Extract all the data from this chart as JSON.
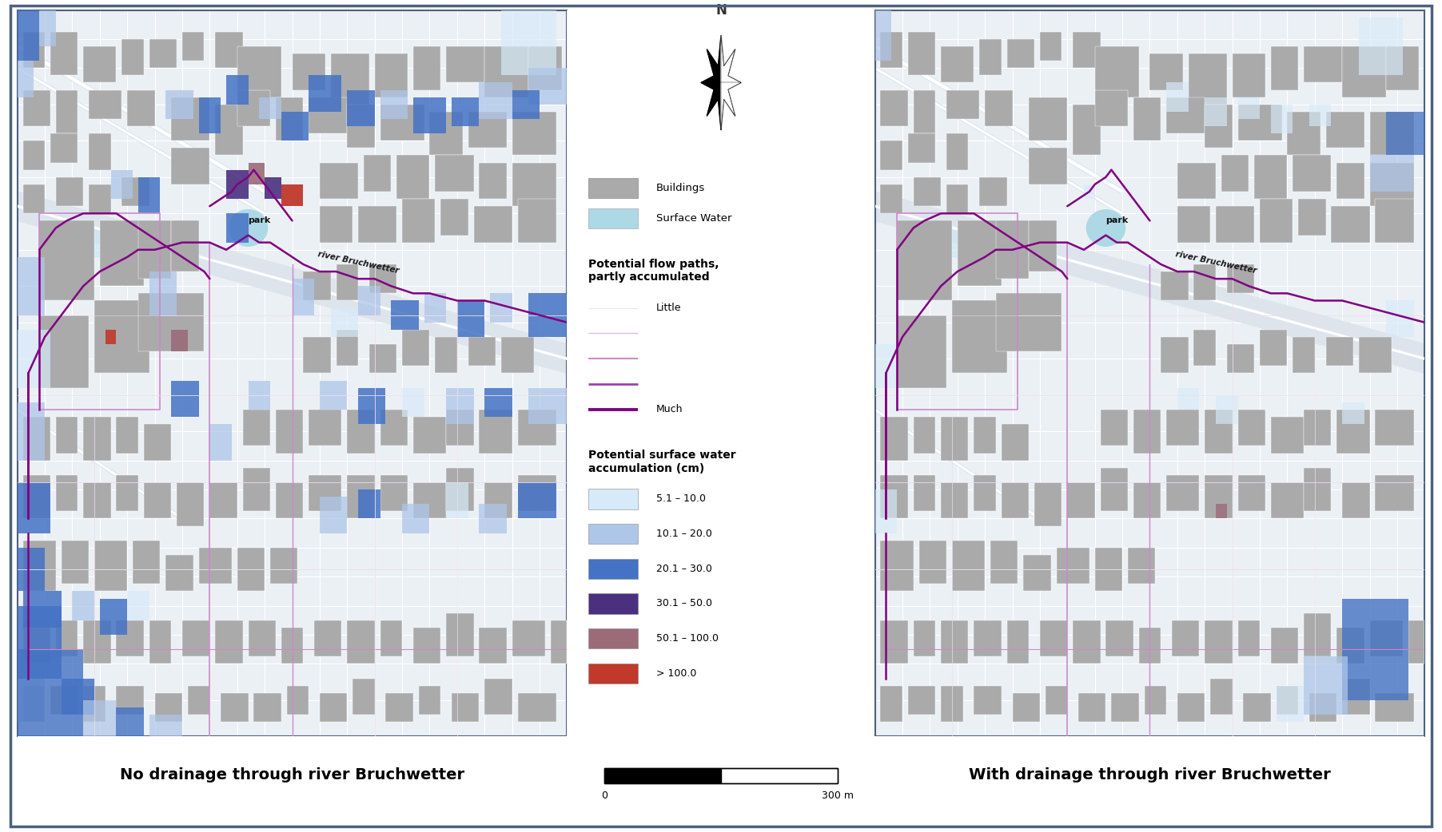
{
  "left_label": "No drainage through river Bruchwetter",
  "right_label": "With drainage through river Bruchwetter",
  "legend_items_base": [
    {
      "label": "Buildings",
      "color": "#aaaaaa"
    },
    {
      "label": "Surface Water",
      "color": "#add8e6"
    }
  ],
  "flow_path_title": "Potential flow paths,\npartly accumulated",
  "flow_path_items": [
    {
      "label": "Little",
      "lw": 0.4,
      "color": "#eedded"
    },
    {
      "label": "",
      "lw": 0.7,
      "color": "#ddbbdd"
    },
    {
      "label": "",
      "lw": 1.1,
      "color": "#cc88cc"
    },
    {
      "label": "",
      "lw": 1.6,
      "color": "#9944aa"
    },
    {
      "label": "Much",
      "lw": 2.2,
      "color": "#800080"
    }
  ],
  "accumulation_title": "Potential surface water\naccumulation (cm)",
  "accumulation_items": [
    {
      "label": "5.1 – 10.0",
      "color": "#d6eaf8"
    },
    {
      "label": "10.1 – 20.0",
      "color": "#aec6e8"
    },
    {
      "label": "20.1 – 30.0",
      "color": "#4472c4"
    },
    {
      "label": "30.1 – 50.0",
      "color": "#4b3080"
    },
    {
      "label": "50.1 – 100.0",
      "color": "#9b6b7a"
    },
    {
      "label": "> 100.0",
      "color": "#c0392b"
    }
  ],
  "scale_bar_label": "300 m",
  "scale_bar_zero": "0",
  "bg_color": "#ffffff",
  "border_color": "#4d6080",
  "map_bg": "#f8f9fa",
  "map_street_color": "#ffffff",
  "map_parcel_color": "#e8eef5",
  "building_color": "#aaaaaa",
  "building_edge": "#ffffff",
  "purple_flow": "#800080",
  "light_purple": "#cc88cc",
  "lightest_purple": "#eedded"
}
